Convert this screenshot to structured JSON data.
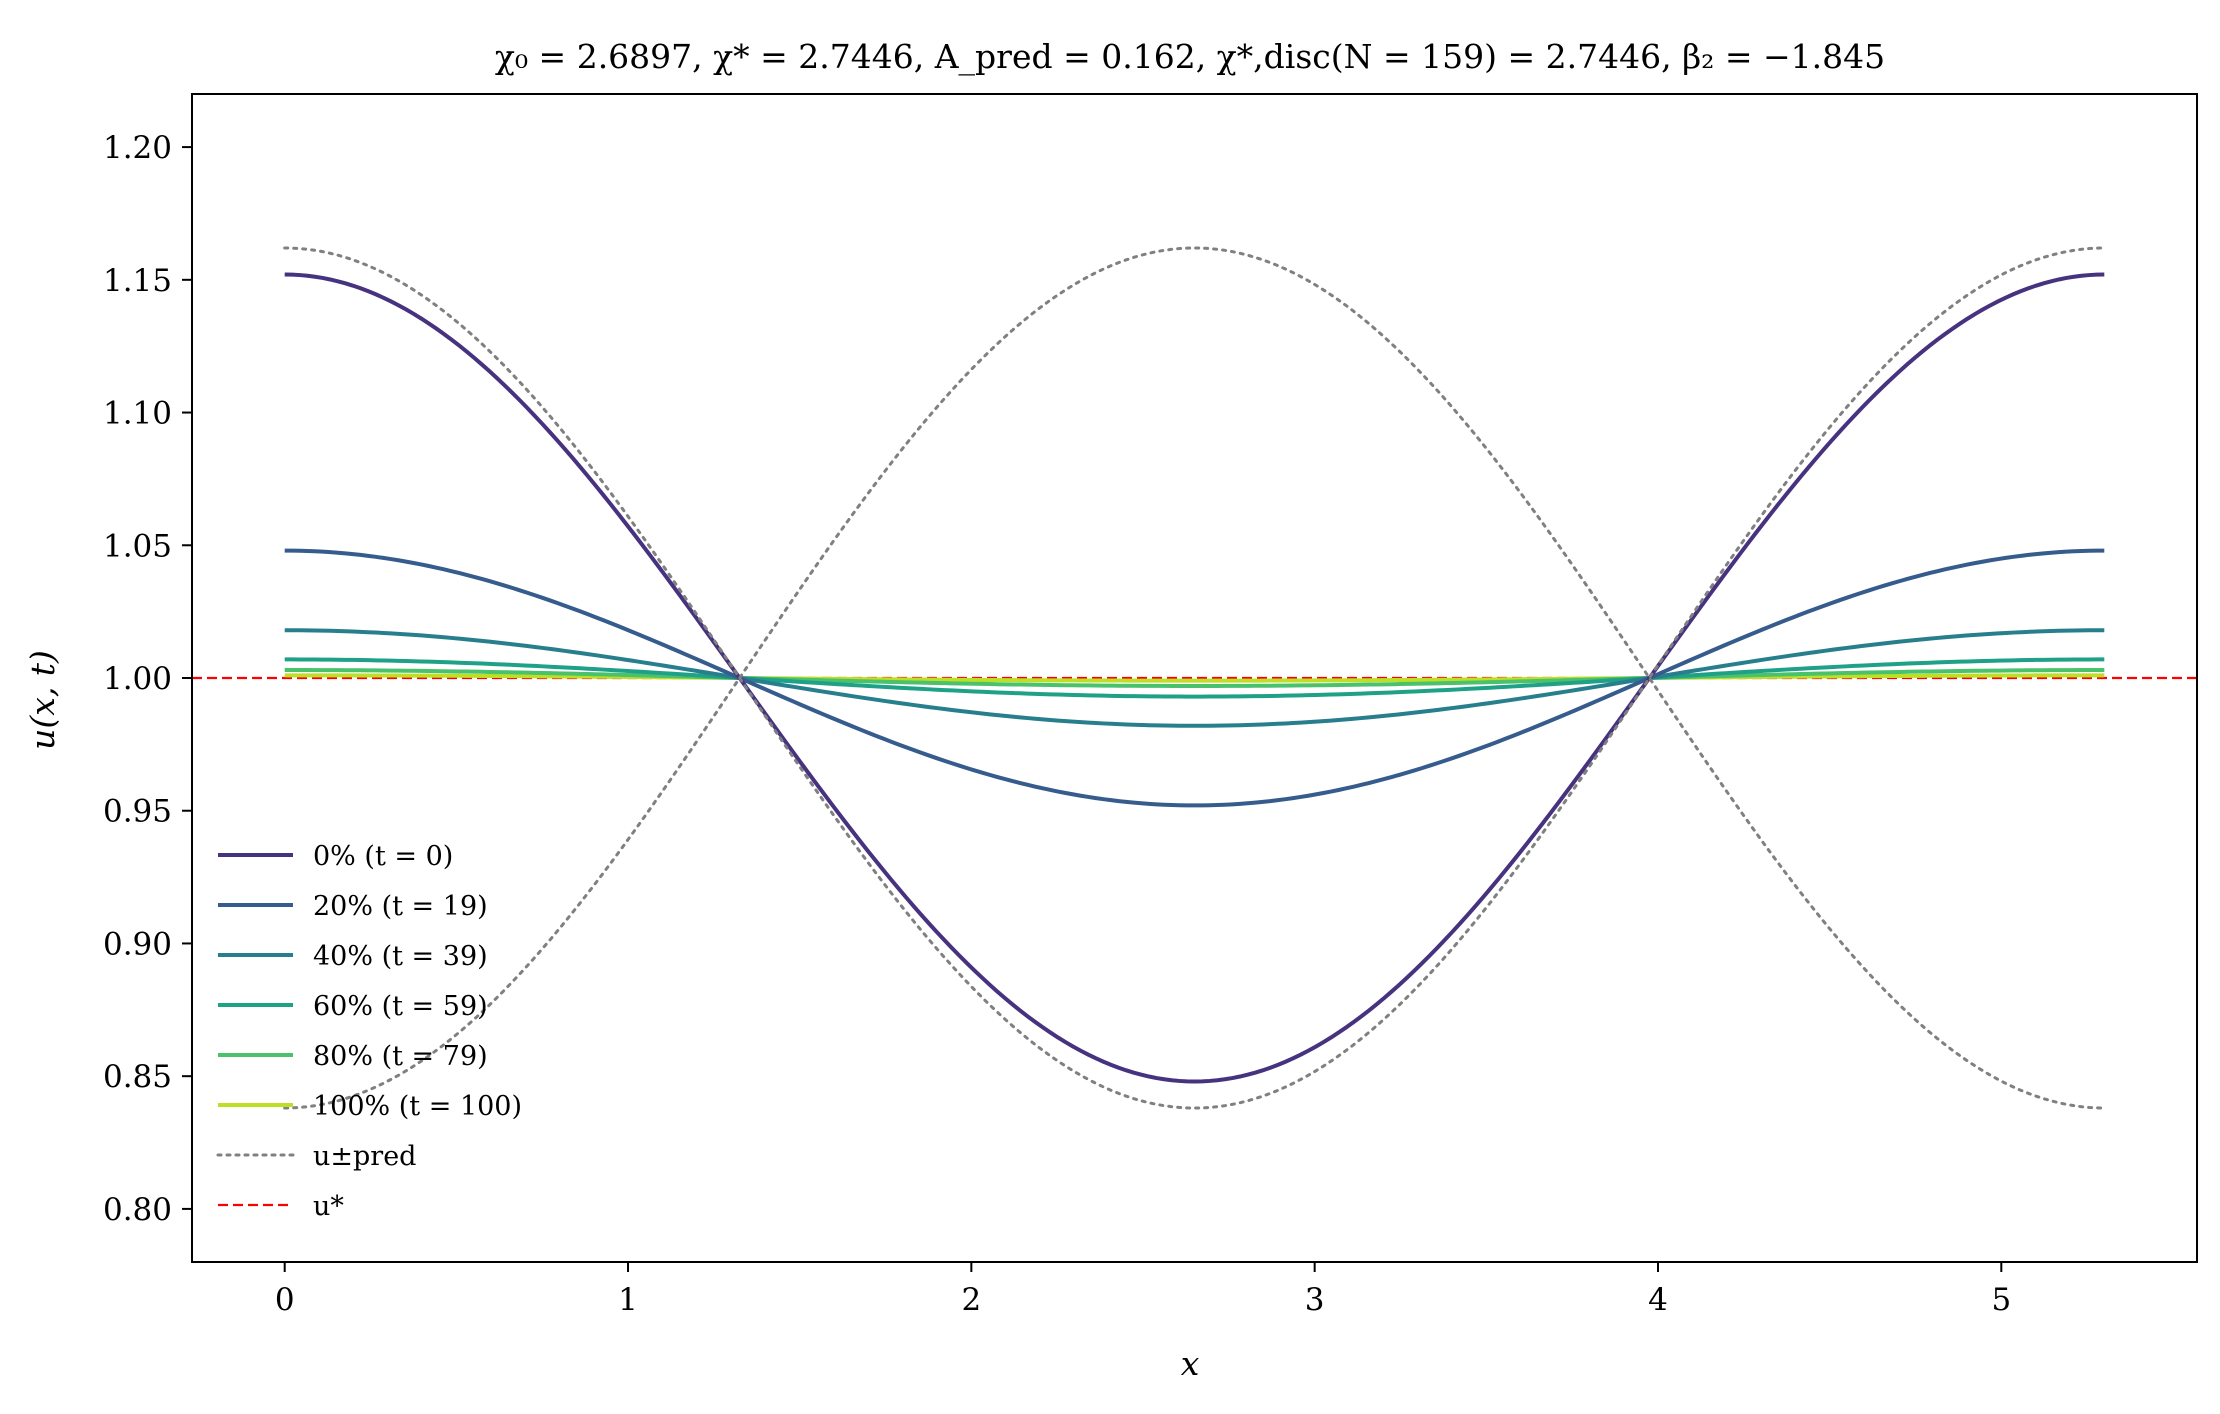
{
  "chart_data": {
    "type": "line",
    "title": "χ₀ = 2.6897,  χ* = 2.7446,  A_pred = 0.162,  χ*,disc(N = 159) = 2.7446,  β₂ = −1.845",
    "xlabel": "x",
    "ylabel": "u(x, t)",
    "xlim": [
      -0.27,
      5.57
    ],
    "ylim": [
      0.78,
      1.22
    ],
    "x_ticks": [
      "0",
      "1",
      "2",
      "3",
      "4",
      "5"
    ],
    "y_ticks": [
      "0.80",
      "0.85",
      "0.90",
      "0.95",
      "1.00",
      "1.05",
      "1.10",
      "1.15",
      "1.20"
    ],
    "grid": false,
    "legend_position": "lower-left",
    "domain_length": 5.3,
    "series": [
      {
        "name": "0% (t = 0)",
        "amplitude": 0.152,
        "color": "#46327e",
        "style": "solid"
      },
      {
        "name": "20% (t = 19)",
        "amplitude": 0.048,
        "color": "#365c8d",
        "style": "solid"
      },
      {
        "name": "40% (t = 39)",
        "amplitude": 0.018,
        "color": "#277f8e",
        "style": "solid"
      },
      {
        "name": "60% (t = 59)",
        "amplitude": 0.007,
        "color": "#1fa187",
        "style": "solid"
      },
      {
        "name": "80% (t = 79)",
        "amplitude": 0.003,
        "color": "#4ac16d",
        "style": "solid"
      },
      {
        "name": "100% (t = 100)",
        "amplitude": 0.001,
        "color": "#bddf26",
        "style": "solid"
      }
    ],
    "envelope": {
      "name": "u±pred",
      "amplitude": 0.162,
      "color": "#808080",
      "style": "dotted"
    },
    "reference": {
      "name": "u*",
      "value": 1.0,
      "color": "#ff0000",
      "style": "dashed"
    }
  }
}
